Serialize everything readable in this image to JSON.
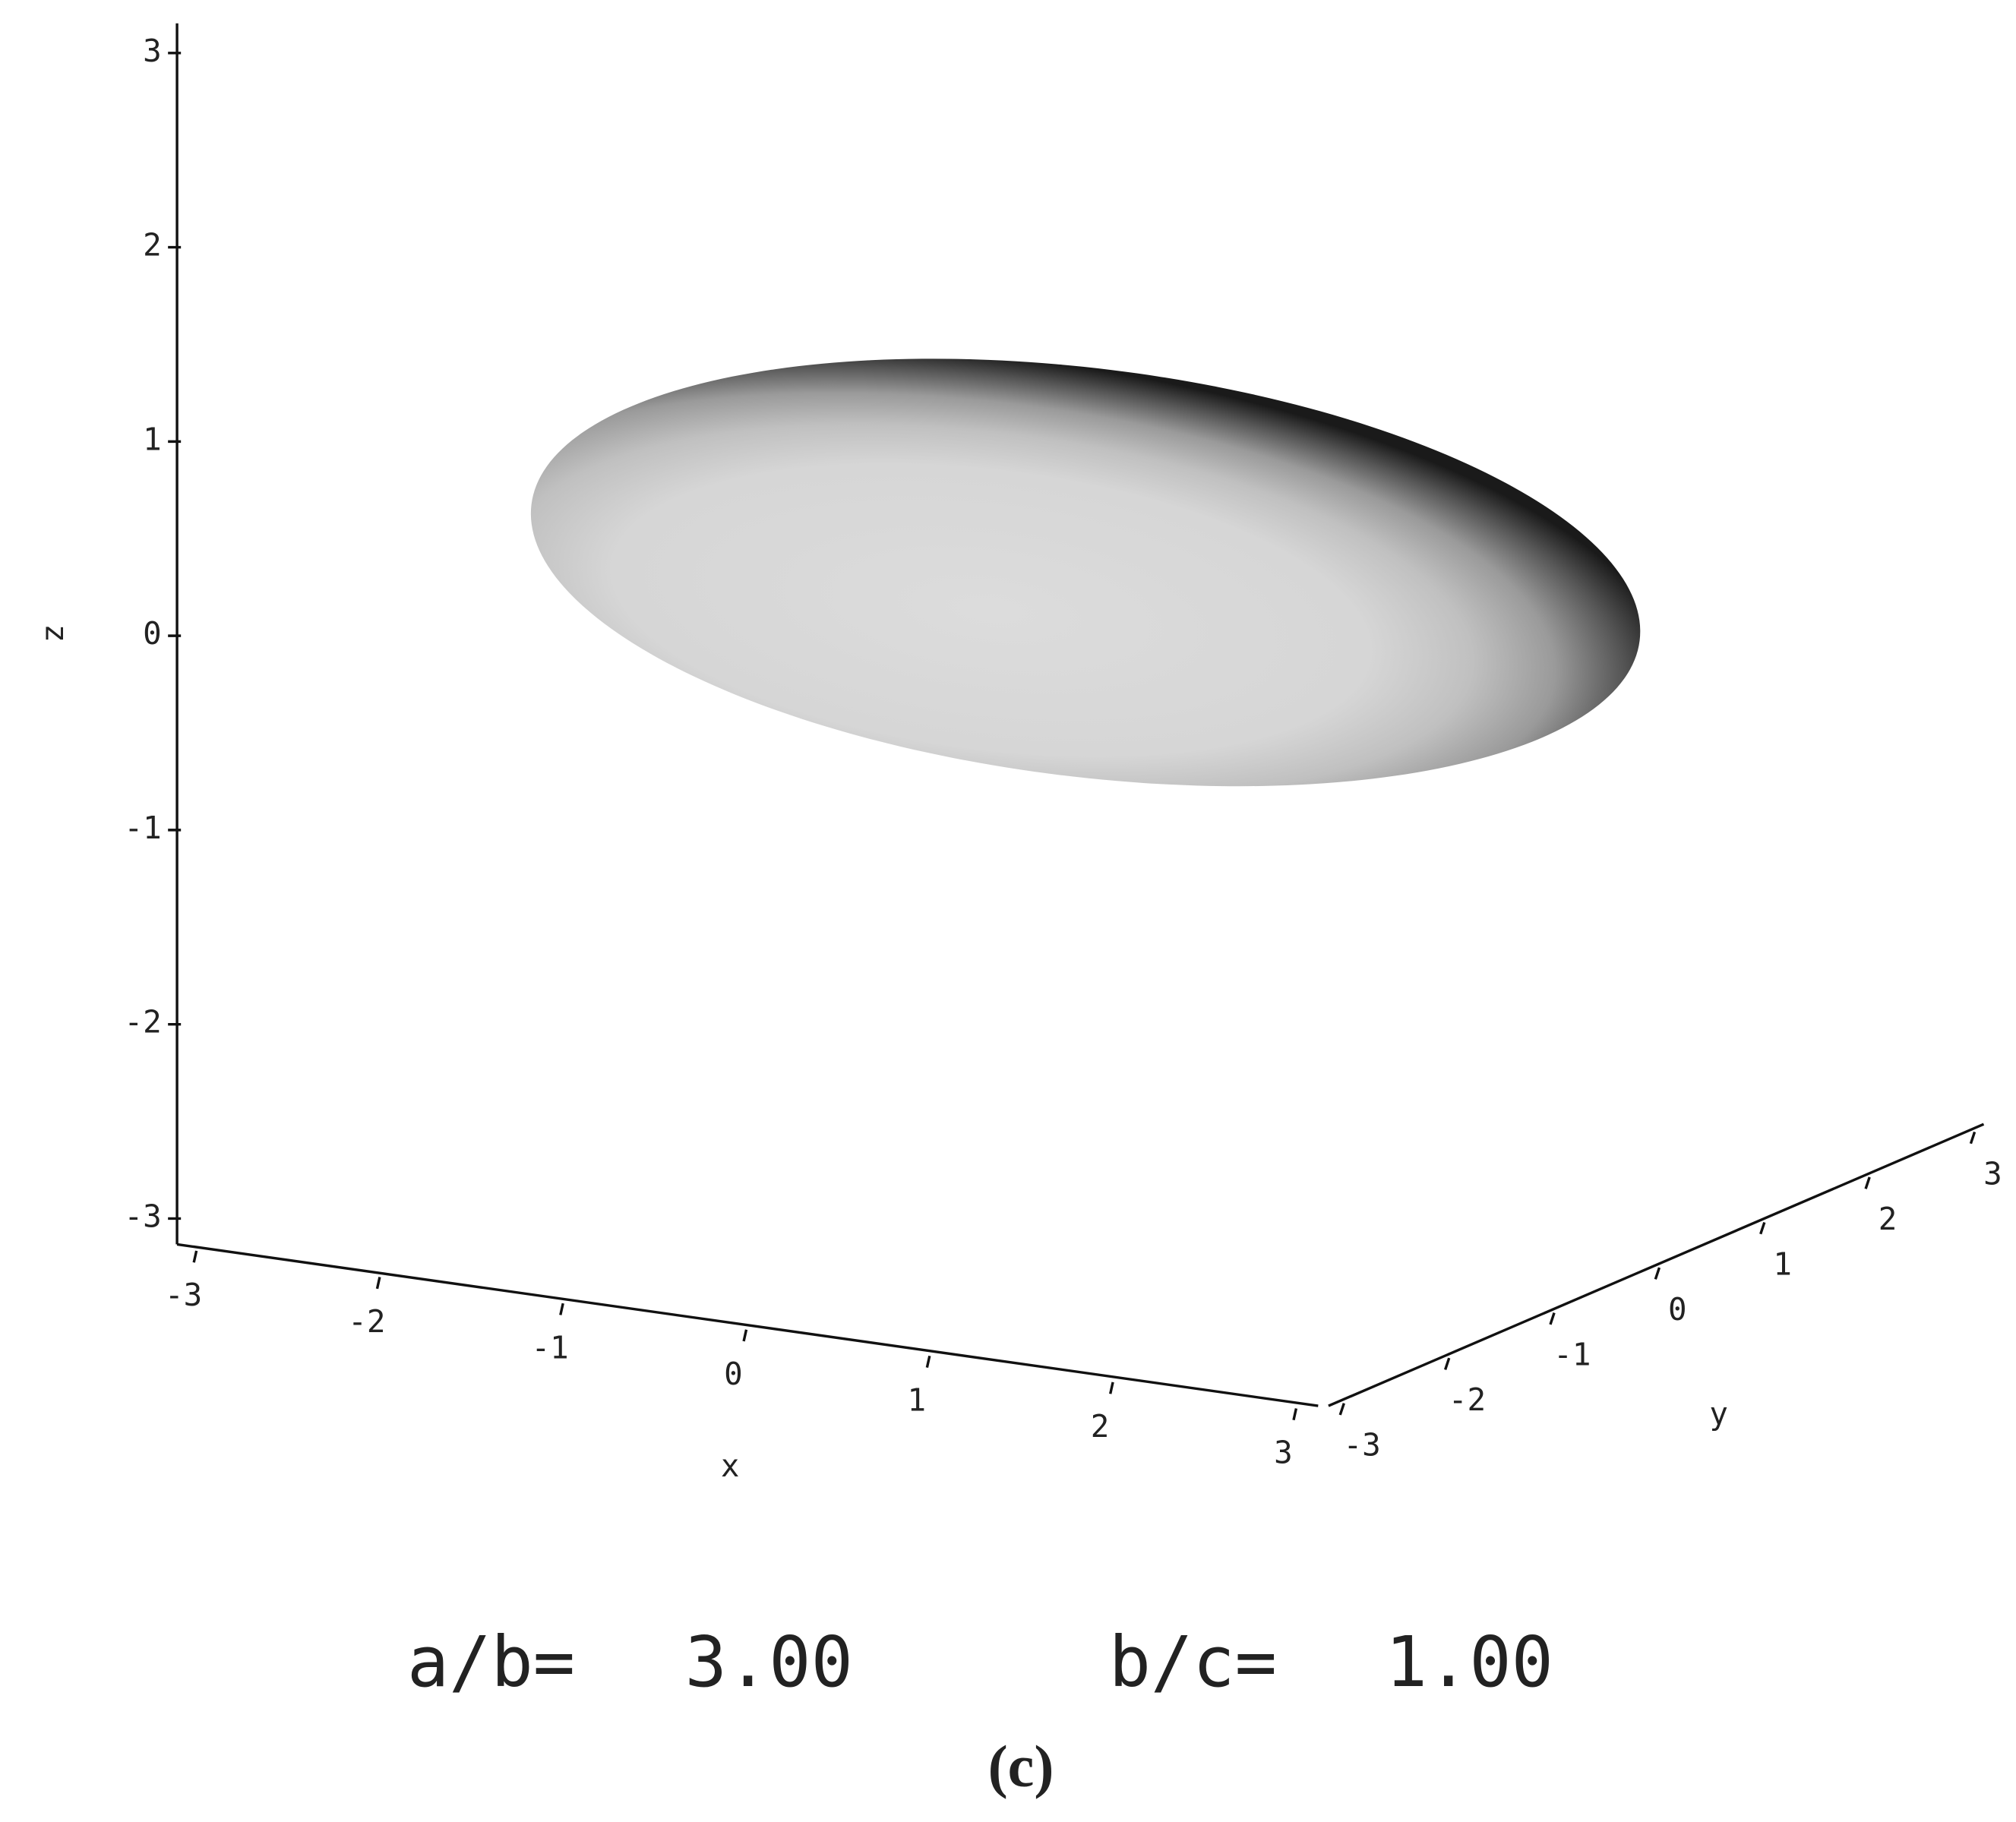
{
  "chart_data": {
    "type": "ellipsoid",
    "xlabel": "x",
    "ylabel": "y",
    "zlabel": "z",
    "xlim": [
      -3,
      3
    ],
    "xticks": [
      -3,
      -2,
      -1,
      0,
      1,
      2,
      3
    ],
    "ylim": [
      -3,
      3
    ],
    "yticks": [
      -3,
      -2,
      -1,
      0,
      1,
      2,
      3
    ],
    "zlim": [
      -3,
      3
    ],
    "zticks": [
      -3,
      -2,
      -1,
      0,
      1,
      2,
      3
    ],
    "ratios": [
      {
        "name": "a/b=",
        "value": 3,
        "value_label": "3.00"
      },
      {
        "name": "b/c=",
        "value": 1,
        "value_label": "1.00"
      }
    ],
    "caption": "(c)"
  }
}
